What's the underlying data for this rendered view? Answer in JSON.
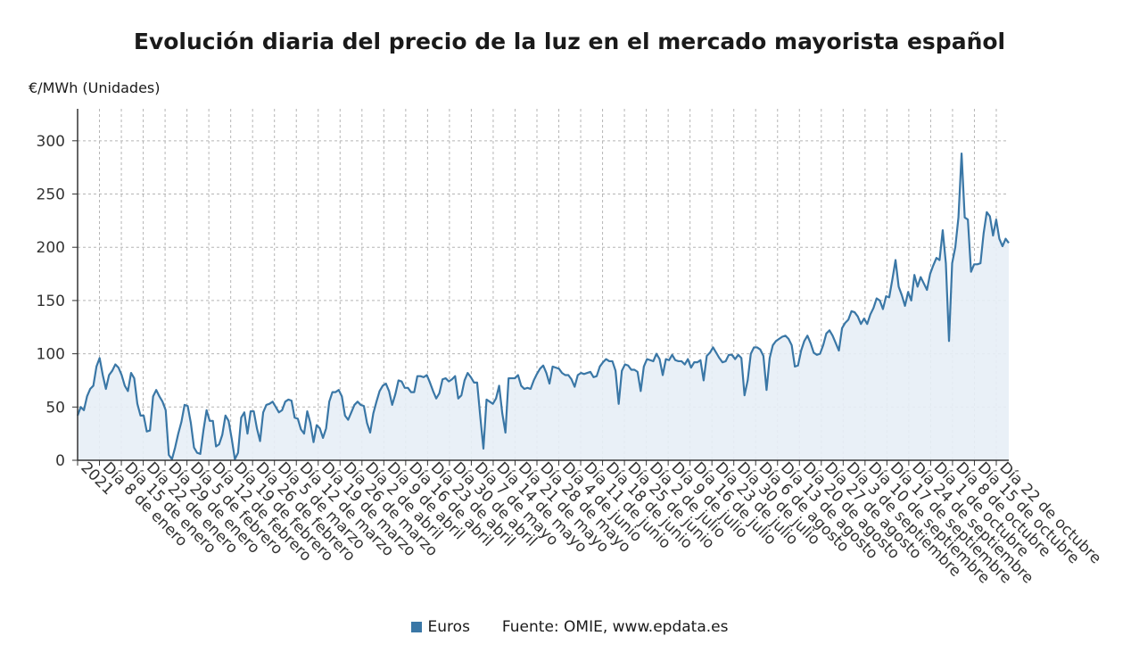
{
  "chart_data": {
    "type": "area",
    "title": "Evolución diaria del precio de la luz en el mercado mayorista español",
    "ylabel": "€/MWh (Unidades)",
    "xlabel": "",
    "ylim": [
      0,
      330
    ],
    "yticks": [
      0,
      50,
      100,
      150,
      200,
      250,
      300
    ],
    "grid": true,
    "legend_position": "bottom",
    "source": "Fuente: OMIE, www.epdata.es",
    "colors": {
      "line": "#3a77a6",
      "fill": "#e7eef6",
      "grid": "#b5b5b5",
      "axis": "#333333"
    },
    "x_start": "2021-01-01",
    "x_end": "2021-10-26",
    "x_tick_labels": [
      "2021",
      "Día 8 de enero",
      "Día 15 de enero",
      "Día 22 de enero",
      "Día 29 de enero",
      "Día 5 de febrero",
      "Día 12 de febrero",
      "Día 19 de febrero",
      "Día 26 de febrero",
      "Día 5 de marzo",
      "Día 12 de marzo",
      "Día 19 de marzo",
      "Día 26 de marzo",
      "Día 2 de abril",
      "Día 9 de abril",
      "Día 16 de abril",
      "Día 23 de abril",
      "Día 30 de abril",
      "Día 7 de mayo",
      "Día 14 de mayo",
      "Día 21 de mayo",
      "Día 28 de mayo",
      "Día 4 de junio",
      "Día 11 de junio",
      "Día 18 de junio",
      "Día 25 de junio",
      "Día 2 de julio",
      "Día 9 de julio",
      "Día 16 de julio",
      "Día 23 de julio",
      "Día 30 de julio",
      "Día 6 de agosto",
      "Día 13 de agosto",
      "Día 20 de agosto",
      "Día 27 de agosto",
      "Día 3 de septiembre",
      "Día 10 de septiembre",
      "Día 17 de septiembre",
      "Día 24 de septiembre",
      "Día 1 de octubre",
      "Día 8 de octubre",
      "Día 15 de octubre",
      "Día 22 de octubre"
    ],
    "series": [
      {
        "name": "Euros",
        "values": [
          42,
          50,
          47,
          60,
          67,
          70,
          88,
          96,
          80,
          67,
          80,
          84,
          90,
          87,
          80,
          70,
          65,
          82,
          77,
          53,
          42,
          42,
          27,
          28,
          60,
          66,
          60,
          55,
          47,
          5,
          1,
          12,
          25,
          36,
          52,
          51,
          35,
          12,
          7,
          6,
          28,
          47,
          37,
          37,
          13,
          15,
          24,
          42,
          37,
          20,
          1,
          7,
          40,
          45,
          25,
          46,
          46,
          30,
          18,
          45,
          52,
          53,
          55,
          50,
          45,
          47,
          55,
          57,
          56,
          40,
          39,
          29,
          25,
          46,
          35,
          17,
          33,
          30,
          21,
          30,
          55,
          64,
          64,
          66,
          60,
          42,
          38,
          45,
          52,
          55,
          52,
          51,
          35,
          26,
          44,
          55,
          65,
          70,
          72,
          65,
          52,
          62,
          75,
          74,
          68,
          68,
          64,
          64,
          79,
          79,
          78,
          80,
          73,
          65,
          58,
          63,
          76,
          77,
          74,
          76,
          79,
          58,
          61,
          75,
          82,
          78,
          73,
          73,
          41,
          11,
          57,
          55,
          53,
          58,
          70,
          44,
          26,
          77,
          77,
          77,
          80,
          70,
          67,
          68,
          67,
          75,
          81,
          86,
          89,
          82,
          72,
          88,
          87,
          86,
          82,
          80,
          80,
          76,
          69,
          80,
          82,
          81,
          82,
          83,
          78,
          79,
          88,
          92,
          95,
          93,
          93,
          84,
          53,
          84,
          90,
          89,
          85,
          85,
          83,
          65,
          88,
          95,
          94,
          93,
          100,
          95,
          80,
          95,
          94,
          99,
          94,
          93,
          93,
          90,
          95,
          87,
          92,
          92,
          94,
          75,
          98,
          101,
          106,
          101,
          96,
          92,
          93,
          99,
          99,
          95,
          99,
          96,
          61,
          75,
          100,
          106,
          106,
          104,
          98,
          66,
          96,
          108,
          112,
          114,
          116,
          117,
          114,
          108,
          88,
          89,
          103,
          112,
          117,
          110,
          101,
          99,
          100,
          108,
          119,
          122,
          117,
          110,
          103,
          124,
          129,
          132,
          140,
          139,
          135,
          128,
          133,
          128,
          137,
          143,
          152,
          150,
          142,
          154,
          153,
          170,
          188,
          163,
          155,
          145,
          158,
          150,
          174,
          163,
          172,
          166,
          160,
          175,
          183,
          190,
          188,
          216,
          185,
          112,
          185,
          200,
          228,
          288,
          228,
          226,
          177,
          184,
          184,
          185,
          213,
          233,
          229,
          211,
          226,
          208,
          201,
          208,
          204
        ]
      }
    ]
  }
}
